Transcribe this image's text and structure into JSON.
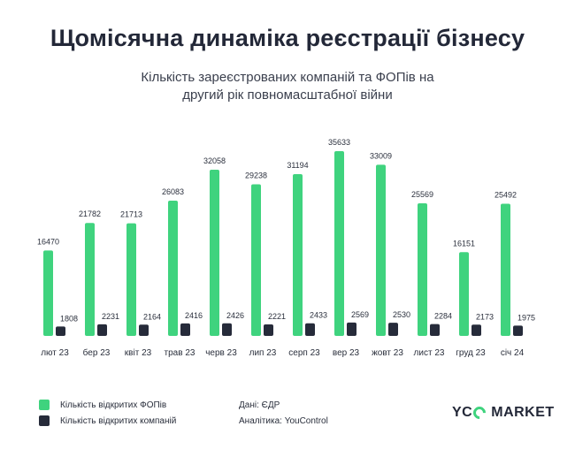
{
  "title": "Щомісячна динаміка реєстрації бізнесу",
  "subtitle": [
    "Кількість зареєстрованих компаній та ФОПів на",
    "другий рік повномасштабної війни"
  ],
  "colors": {
    "fop": "#3fd37e",
    "companies": "#262b3a",
    "text": "#232838"
  },
  "chart_data": {
    "type": "bar",
    "title": "Щомісячна динаміка реєстрації бізнесу",
    "subtitle": "Кількість зареєстрованих компаній та ФОПів на другий рік повномасштабної війни",
    "categories": [
      "лют 23",
      "бер 23",
      "квіт 23",
      "трав 23",
      "черв 23",
      "лип 23",
      "серп 23",
      "вер 23",
      "жовт 23",
      "лист 23",
      "груд 23",
      "січ 24"
    ],
    "series": [
      {
        "name": "Кількість відкритих ФОПів",
        "values": [
          16470,
          21782,
          21713,
          26083,
          32058,
          29238,
          31194,
          35633,
          33009,
          25569,
          16151,
          25492
        ]
      },
      {
        "name": "Кількість відкритих компаній",
        "values": [
          1808,
          2231,
          2164,
          2416,
          2426,
          2221,
          2433,
          2569,
          2530,
          2284,
          2173,
          1975
        ]
      }
    ],
    "grid": false,
    "legend": "bottom-left"
  },
  "legend": {
    "fop_label": "Кількість відкритих ФОПів",
    "companies_label": "Кількість відкритих компаній"
  },
  "source": {
    "data": "Дані: ЄДР",
    "analytics": "Аналітика: YouControl"
  },
  "logo": {
    "left": "YC",
    "right": "MARKET"
  }
}
